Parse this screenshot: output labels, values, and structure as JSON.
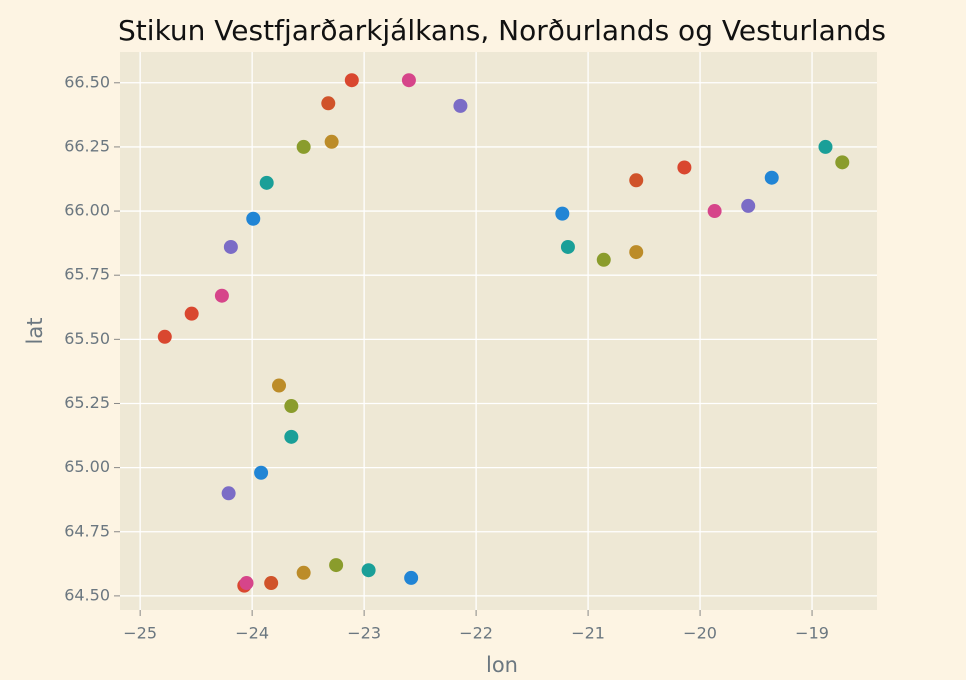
{
  "chart_data": {
    "type": "scatter",
    "title": "Stikun Vestfjarðarkjálkans, Norðurlands og Vesturlands",
    "xlabel": "lon",
    "ylabel": "lat",
    "xlim": [
      -25.18,
      -18.42
    ],
    "ylim": [
      64.445,
      66.62
    ],
    "xticks": [
      {
        "value": -25,
        "label": "−25"
      },
      {
        "value": -24,
        "label": "−24"
      },
      {
        "value": -23,
        "label": "−23"
      },
      {
        "value": -22,
        "label": "−22"
      },
      {
        "value": -21,
        "label": "−21"
      },
      {
        "value": -20,
        "label": "−20"
      },
      {
        "value": -19,
        "label": "−19"
      }
    ],
    "yticks": [
      {
        "value": 64.5,
        "label": "64.50"
      },
      64.75,
      {
        "value": 65,
        "label": "65.00"
      },
      65.25,
      {
        "value": 65.5,
        "label": "65.50"
      },
      65.75,
      {
        "value": 66,
        "label": "66.00"
      },
      66.25,
      {
        "value": 66.5,
        "label": "66.50"
      }
    ],
    "grid": true,
    "x": [
      -24.78,
      -24.54,
      -24.27,
      -24.19,
      -23.99,
      -23.87,
      -23.54,
      -23.29,
      -23.32,
      -23.11,
      -22.6,
      -22.14,
      -21.23,
      -21.18,
      -20.86,
      -20.57,
      -20.57,
      -20.14,
      -19.87,
      -19.57,
      -19.36,
      -18.88,
      -18.73,
      -23.76,
      -23.65,
      -23.65,
      -23.92,
      -24.21,
      -24.07,
      -24.05,
      -23.83,
      -23.54,
      -23.25,
      -22.96,
      -22.58
    ],
    "values": [
      65.51,
      65.6,
      65.67,
      65.86,
      65.97,
      66.11,
      66.25,
      66.27,
      66.42,
      66.51,
      66.51,
      66.41,
      65.99,
      65.86,
      65.81,
      65.84,
      66.12,
      66.17,
      66.0,
      66.02,
      66.13,
      66.25,
      66.19,
      65.32,
      65.24,
      65.12,
      64.98,
      64.9,
      64.54,
      64.55,
      64.55,
      64.59,
      64.62,
      64.6,
      64.57
    ],
    "colors": [
      "#d9472f",
      "#d9472f",
      "#d6458a",
      "#7b6cc6",
      "#2185d5",
      "#1a9f98",
      "#8a9c2c",
      "#bc8c29",
      "#d0532a",
      "#d9472f",
      "#d6458a",
      "#7b6cc6",
      "#2185d5",
      "#1a9f98",
      "#8a9c2c",
      "#bc8c29",
      "#d0532a",
      "#d9472f",
      "#d6458a",
      "#7b6cc6",
      "#2185d5",
      "#1a9f98",
      "#8a9c2c",
      "#bc8c29",
      "#8a9c2c",
      "#1a9f98",
      "#2185d5",
      "#7b6cc6",
      "#d9472f",
      "#d6458a",
      "#d0532a",
      "#bc8c29",
      "#8a9c2c",
      "#1a9f98",
      "#2185d5"
    ]
  }
}
